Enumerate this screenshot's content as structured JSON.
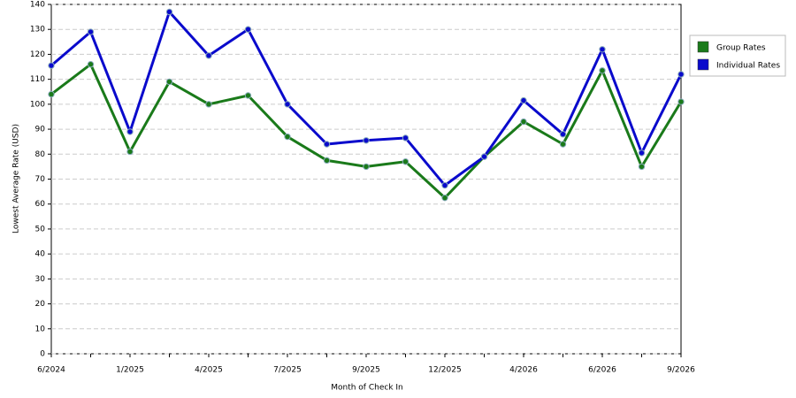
{
  "chart_data": {
    "type": "line",
    "x_label": "Month of Check In",
    "y_label": "Lowest Average Rate (USD)",
    "categories": [
      "6/2024",
      null,
      "1/2025",
      null,
      "4/2025",
      null,
      "7/2025",
      null,
      "9/2025",
      null,
      "12/2025",
      null,
      "4/2026",
      null,
      "6/2026",
      null,
      "9/2026"
    ],
    "series": [
      {
        "name": "Group Rates",
        "color": "#1a7a1a",
        "values": [
          104,
          116,
          81,
          109,
          100,
          103.5,
          87,
          77.5,
          75,
          77,
          62.5,
          79,
          93,
          84,
          113.5,
          75,
          101
        ]
      },
      {
        "name": "Individual Rates",
        "color": "#0a0acc",
        "values": [
          115.5,
          129,
          89,
          137,
          119.5,
          130,
          100,
          84,
          85.5,
          86.5,
          67.5,
          79,
          101.5,
          88,
          122,
          80.5,
          112
        ]
      }
    ],
    "ylim": [
      0,
      140
    ],
    "yticks": [
      0,
      10,
      20,
      30,
      40,
      50,
      60,
      70,
      80,
      90,
      100,
      110,
      120,
      130,
      140
    ],
    "grid": true,
    "legend": "right"
  }
}
